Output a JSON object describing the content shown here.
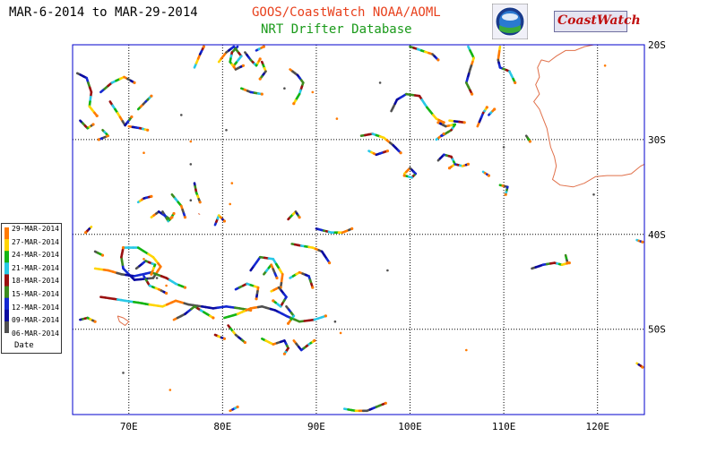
{
  "header": {
    "date_range": "MAR-6-2014 to MAR-29-2014",
    "producer": "GOOS/CoastWatch  NOAA/AOML",
    "subtitle": "NRT Drifter Database"
  },
  "logos": {
    "noaa": "noaa-logo",
    "coastwatch": "CoastWatch"
  },
  "map": {
    "lon_range": [
      64,
      125
    ],
    "lat_range": [
      -59,
      -20
    ],
    "lon_ticks": [
      {
        "value": 70,
        "label": "70E"
      },
      {
        "value": 80,
        "label": "80E"
      },
      {
        "value": 90,
        "label": "90E"
      },
      {
        "value": 100,
        "label": "100E"
      },
      {
        "value": 110,
        "label": "110E"
      },
      {
        "value": 120,
        "label": "120E"
      }
    ],
    "lat_ticks": [
      {
        "value": -20,
        "label": "20S"
      },
      {
        "value": -30,
        "label": "30S"
      },
      {
        "value": -40,
        "label": "40S"
      },
      {
        "value": -50,
        "label": "50S"
      }
    ],
    "grid": "dotted",
    "colors": {
      "frame": "#0000cc",
      "coast": "#e0704a",
      "grid": "#000000"
    }
  },
  "legend": {
    "title": "Date",
    "entries": [
      {
        "label": "29-MAR-2014",
        "color": "#ff7a00"
      },
      {
        "label": "27-MAR-2014",
        "color": "#ffd400"
      },
      {
        "label": "24-MAR-2014",
        "color": "#14b414"
      },
      {
        "label": "21-MAR-2014",
        "color": "#28c8e6"
      },
      {
        "label": "18-MAR-2014",
        "color": "#9a1010"
      },
      {
        "label": "15-MAR-2014",
        "color": "#3c8c1e"
      },
      {
        "label": "12-MAR-2014",
        "color": "#1428d2"
      },
      {
        "label": "09-MAR-2014",
        "color": "#0a0aa0"
      },
      {
        "label": "06-MAR-2014",
        "color": "#505050"
      }
    ]
  },
  "tracks": [
    [
      [
        64.5,
        -23.0
      ],
      [
        65.5,
        -23.5
      ],
      [
        66.0,
        -25.0
      ],
      [
        65.8,
        -26.5
      ],
      [
        66.6,
        -27.5
      ]
    ],
    [
      [
        67.0,
        -25.0
      ],
      [
        68.2,
        -24.0
      ],
      [
        69.5,
        -23.4
      ],
      [
        70.6,
        -24.0
      ]
    ],
    [
      [
        68.0,
        -26.0
      ],
      [
        68.8,
        -27.2
      ],
      [
        69.6,
        -28.5
      ],
      [
        70.3,
        -27.6
      ]
    ],
    [
      [
        71.0,
        -26.8
      ],
      [
        71.8,
        -26.0
      ],
      [
        72.4,
        -25.4
      ]
    ],
    [
      [
        70.0,
        -28.6
      ],
      [
        71.2,
        -28.8
      ],
      [
        72.0,
        -29.0
      ]
    ],
    [
      [
        64.8,
        -28.0
      ],
      [
        65.6,
        -28.8
      ],
      [
        66.2,
        -28.4
      ]
    ],
    [
      [
        67.2,
        -29.0
      ],
      [
        67.8,
        -29.6
      ],
      [
        66.8,
        -30.0
      ]
    ],
    [
      [
        77.0,
        -22.4
      ],
      [
        77.6,
        -21.0
      ],
      [
        78.0,
        -20.2
      ]
    ],
    [
      [
        79.6,
        -21.8
      ],
      [
        80.4,
        -20.8
      ],
      [
        81.2,
        -20.2
      ],
      [
        82.0,
        -21.2
      ],
      [
        81.2,
        -22.2
      ]
    ],
    [
      [
        82.4,
        -20.8
      ],
      [
        83.0,
        -21.6
      ],
      [
        83.6,
        -22.2
      ],
      [
        84.0,
        -21.5
      ]
    ],
    [
      [
        81.6,
        -20.2
      ],
      [
        81.0,
        -20.8
      ],
      [
        80.8,
        -21.8
      ],
      [
        81.4,
        -22.6
      ],
      [
        82.2,
        -22.2
      ]
    ],
    [
      [
        84.2,
        -21.8
      ],
      [
        84.6,
        -22.8
      ],
      [
        84.0,
        -23.6
      ]
    ],
    [
      [
        82.0,
        -24.6
      ],
      [
        83.0,
        -25.0
      ],
      [
        84.2,
        -25.2
      ]
    ],
    [
      [
        87.2,
        -22.6
      ],
      [
        88.0,
        -23.2
      ],
      [
        88.6,
        -24.0
      ],
      [
        88.2,
        -25.2
      ],
      [
        87.6,
        -26.2
      ]
    ],
    [
      [
        83.6,
        -20.6
      ],
      [
        84.4,
        -20.2
      ]
    ],
    [
      [
        100.0,
        -20.2
      ],
      [
        101.2,
        -20.6
      ],
      [
        102.4,
        -21.0
      ],
      [
        103.0,
        -21.6
      ]
    ],
    [
      [
        106.2,
        -20.2
      ],
      [
        106.8,
        -21.4
      ],
      [
        106.4,
        -22.6
      ],
      [
        106.0,
        -24.0
      ],
      [
        106.6,
        -25.2
      ]
    ],
    [
      [
        109.6,
        -20.2
      ],
      [
        109.4,
        -21.6
      ],
      [
        109.6,
        -22.4
      ],
      [
        110.6,
        -22.8
      ],
      [
        111.2,
        -24.0
      ]
    ],
    [
      [
        98.0,
        -27.0
      ],
      [
        98.6,
        -25.8
      ],
      [
        99.6,
        -25.2
      ],
      [
        101.0,
        -25.4
      ],
      [
        101.8,
        -26.6
      ],
      [
        102.8,
        -27.8
      ],
      [
        103.6,
        -28.2
      ]
    ],
    [
      [
        103.4,
        -29.6
      ],
      [
        104.4,
        -29.0
      ],
      [
        104.8,
        -28.4
      ],
      [
        103.8,
        -28.6
      ],
      [
        103.0,
        -28.2
      ]
    ],
    [
      [
        102.8,
        -30.0
      ],
      [
        103.6,
        -29.4
      ]
    ],
    [
      [
        104.2,
        -28.0
      ],
      [
        105.8,
        -28.2
      ]
    ],
    [
      [
        107.2,
        -28.6
      ],
      [
        107.8,
        -27.2
      ],
      [
        108.2,
        -26.6
      ]
    ],
    [
      [
        108.4,
        -27.4
      ],
      [
        109.0,
        -26.8
      ]
    ],
    [
      [
        94.8,
        -29.6
      ],
      [
        96.0,
        -29.4
      ],
      [
        97.2,
        -29.8
      ],
      [
        98.2,
        -30.6
      ],
      [
        99.0,
        -31.4
      ]
    ],
    [
      [
        95.6,
        -31.2
      ],
      [
        96.4,
        -31.6
      ],
      [
        97.6,
        -31.2
      ]
    ],
    [
      [
        99.4,
        -33.6
      ],
      [
        100.0,
        -33.0
      ],
      [
        100.6,
        -33.6
      ],
      [
        100.2,
        -34.0
      ],
      [
        99.4,
        -33.8
      ]
    ],
    [
      [
        103.0,
        -32.2
      ],
      [
        103.6,
        -31.6
      ],
      [
        104.4,
        -31.8
      ],
      [
        104.8,
        -32.6
      ],
      [
        104.2,
        -33.0
      ]
    ],
    [
      [
        104.8,
        -32.6
      ],
      [
        105.6,
        -32.8
      ],
      [
        106.2,
        -32.6
      ]
    ],
    [
      [
        107.8,
        -33.4
      ],
      [
        108.4,
        -33.8
      ]
    ],
    [
      [
        109.6,
        -34.8
      ],
      [
        110.4,
        -35.0
      ],
      [
        110.2,
        -35.8
      ]
    ],
    [
      [
        112.4,
        -29.6
      ],
      [
        112.8,
        -30.2
      ]
    ],
    [
      [
        77.0,
        -34.6
      ],
      [
        77.2,
        -35.6
      ],
      [
        77.6,
        -36.6
      ]
    ],
    [
      [
        74.6,
        -35.8
      ],
      [
        75.6,
        -37.0
      ],
      [
        76.0,
        -38.2
      ]
    ],
    [
      [
        71.0,
        -36.6
      ],
      [
        71.6,
        -36.2
      ],
      [
        72.4,
        -36.0
      ]
    ],
    [
      [
        72.4,
        -38.2
      ],
      [
        73.2,
        -37.6
      ],
      [
        74.4,
        -38.4
      ],
      [
        74.8,
        -37.8
      ]
    ],
    [
      [
        73.6,
        -37.6
      ],
      [
        74.2,
        -38.6
      ],
      [
        74.6,
        -38.2
      ]
    ],
    [
      [
        79.2,
        -39.0
      ],
      [
        79.6,
        -38.0
      ],
      [
        80.2,
        -38.6
      ]
    ],
    [
      [
        87.0,
        -38.4
      ],
      [
        87.8,
        -37.6
      ],
      [
        88.2,
        -38.2
      ]
    ],
    [
      [
        66.0,
        -39.2
      ],
      [
        65.4,
        -39.8
      ]
    ],
    [
      [
        66.4,
        -41.8
      ],
      [
        67.2,
        -42.2
      ]
    ],
    [
      [
        90.0,
        -39.4
      ],
      [
        90.8,
        -39.6
      ],
      [
        91.6,
        -39.8
      ],
      [
        92.8,
        -39.8
      ],
      [
        93.8,
        -39.4
      ]
    ],
    [
      [
        87.4,
        -41.0
      ],
      [
        88.4,
        -41.2
      ],
      [
        89.6,
        -41.4
      ],
      [
        90.6,
        -41.8
      ],
      [
        91.4,
        -43.0
      ]
    ],
    [
      [
        69.4,
        -41.4
      ],
      [
        71.0,
        -41.4
      ],
      [
        72.6,
        -42.4
      ],
      [
        73.4,
        -43.4
      ],
      [
        72.6,
        -44.6
      ],
      [
        70.6,
        -44.8
      ],
      [
        69.4,
        -43.6
      ],
      [
        69.2,
        -42.4
      ],
      [
        69.4,
        -41.4
      ]
    ],
    [
      [
        66.4,
        -43.6
      ],
      [
        67.8,
        -43.8
      ],
      [
        69.2,
        -44.2
      ],
      [
        70.6,
        -44.4
      ],
      [
        72.4,
        -44.0
      ],
      [
        74.0,
        -44.6
      ],
      [
        75.0,
        -45.2
      ],
      [
        76.0,
        -45.6
      ]
    ],
    [
      [
        70.8,
        -43.6
      ],
      [
        71.8,
        -42.8
      ],
      [
        72.8,
        -43.2
      ],
      [
        72.4,
        -44.2
      ]
    ],
    [
      [
        71.6,
        -44.4
      ],
      [
        72.2,
        -45.4
      ],
      [
        73.2,
        -45.8
      ],
      [
        74.0,
        -46.2
      ]
    ],
    [
      [
        67.0,
        -46.6
      ],
      [
        68.4,
        -46.8
      ],
      [
        69.6,
        -47.0
      ],
      [
        71.0,
        -47.2
      ],
      [
        72.2,
        -47.4
      ],
      [
        73.6,
        -47.6
      ],
      [
        75.0,
        -47.0
      ],
      [
        76.4,
        -47.4
      ],
      [
        77.8,
        -47.6
      ],
      [
        79.0,
        -47.8
      ],
      [
        80.4,
        -47.6
      ],
      [
        81.8,
        -47.8
      ],
      [
        83.0,
        -48.0
      ]
    ],
    [
      [
        80.2,
        -48.8
      ],
      [
        81.6,
        -48.4
      ],
      [
        83.0,
        -47.8
      ],
      [
        84.2,
        -47.6
      ],
      [
        85.6,
        -48.0
      ],
      [
        86.8,
        -48.6
      ],
      [
        88.2,
        -49.2
      ],
      [
        89.8,
        -49.0
      ],
      [
        91.0,
        -48.6
      ]
    ],
    [
      [
        74.8,
        -49.0
      ],
      [
        76.0,
        -48.4
      ],
      [
        77.0,
        -47.6
      ],
      [
        78.0,
        -48.2
      ],
      [
        79.0,
        -48.8
      ]
    ],
    [
      [
        83.0,
        -43.8
      ],
      [
        84.0,
        -42.4
      ],
      [
        85.4,
        -42.6
      ],
      [
        86.4,
        -44.2
      ],
      [
        86.2,
        -45.6
      ]
    ],
    [
      [
        84.4,
        -44.2
      ],
      [
        85.2,
        -43.2
      ],
      [
        85.8,
        -44.6
      ]
    ],
    [
      [
        87.2,
        -44.6
      ],
      [
        88.2,
        -44.0
      ],
      [
        89.2,
        -44.4
      ],
      [
        89.6,
        -45.6
      ]
    ],
    [
      [
        85.2,
        -46.0
      ],
      [
        86.0,
        -45.6
      ],
      [
        86.8,
        -46.6
      ],
      [
        86.2,
        -47.6
      ],
      [
        85.4,
        -47.0
      ]
    ],
    [
      [
        86.8,
        -47.6
      ],
      [
        87.6,
        -48.6
      ],
      [
        87.0,
        -49.4
      ]
    ],
    [
      [
        81.4,
        -45.8
      ],
      [
        82.6,
        -45.2
      ],
      [
        83.8,
        -45.6
      ],
      [
        83.6,
        -46.8
      ]
    ],
    [
      [
        80.6,
        -49.6
      ],
      [
        81.4,
        -50.6
      ],
      [
        82.4,
        -51.4
      ]
    ],
    [
      [
        84.2,
        -51.0
      ],
      [
        85.4,
        -51.6
      ],
      [
        86.6,
        -51.2
      ],
      [
        87.0,
        -52.0
      ],
      [
        86.6,
        -52.6
      ]
    ],
    [
      [
        87.6,
        -51.2
      ],
      [
        88.4,
        -52.2
      ],
      [
        89.2,
        -51.6
      ],
      [
        89.8,
        -51.2
      ]
    ],
    [
      [
        64.8,
        -49.0
      ],
      [
        65.6,
        -48.8
      ],
      [
        66.4,
        -49.2
      ]
    ],
    [
      [
        79.2,
        -50.6
      ],
      [
        80.2,
        -51.0
      ]
    ],
    [
      [
        93.0,
        -58.4
      ],
      [
        94.2,
        -58.6
      ],
      [
        95.4,
        -58.6
      ],
      [
        96.4,
        -58.2
      ],
      [
        97.4,
        -57.8
      ]
    ],
    [
      [
        80.8,
        -58.6
      ],
      [
        81.6,
        -58.2
      ]
    ],
    [
      [
        113.0,
        -43.6
      ],
      [
        114.2,
        -43.2
      ],
      [
        115.4,
        -43.0
      ],
      [
        116.2,
        -43.2
      ],
      [
        117.0,
        -43.0
      ]
    ],
    [
      [
        116.6,
        -42.2
      ],
      [
        116.8,
        -43.0
      ]
    ],
    [
      [
        124.2,
        -40.6
      ],
      [
        124.8,
        -40.8
      ]
    ],
    [
      [
        124.2,
        -53.6
      ],
      [
        124.8,
        -54.0
      ]
    ]
  ],
  "coastline": [
    [
      [
        114.0,
        -21.6
      ],
      [
        114.8,
        -21.8
      ],
      [
        115.6,
        -21.2
      ],
      [
        116.6,
        -20.6
      ],
      [
        117.6,
        -20.6
      ],
      [
        118.6,
        -20.2
      ],
      [
        119.6,
        -20.0
      ]
    ],
    [
      [
        114.0,
        -21.6
      ],
      [
        113.6,
        -22.4
      ],
      [
        113.8,
        -23.4
      ],
      [
        113.4,
        -24.2
      ],
      [
        113.8,
        -25.2
      ],
      [
        113.2,
        -26.0
      ],
      [
        113.8,
        -26.8
      ],
      [
        114.2,
        -27.8
      ],
      [
        114.6,
        -28.8
      ],
      [
        114.8,
        -29.8
      ],
      [
        115.0,
        -30.8
      ],
      [
        115.4,
        -31.8
      ],
      [
        115.6,
        -32.8
      ],
      [
        115.4,
        -33.6
      ],
      [
        115.2,
        -34.2
      ],
      [
        116.0,
        -34.8
      ],
      [
        117.4,
        -35.0
      ],
      [
        118.6,
        -34.6
      ],
      [
        119.8,
        -33.9
      ],
      [
        121.0,
        -33.8
      ],
      [
        122.6,
        -33.8
      ],
      [
        123.6,
        -33.6
      ],
      [
        124.6,
        -32.8
      ],
      [
        125.0,
        -32.6
      ]
    ],
    [
      [
        68.8,
        -48.6
      ],
      [
        69.4,
        -48.8
      ],
      [
        70.0,
        -49.2
      ],
      [
        69.6,
        -49.6
      ],
      [
        69.0,
        -49.2
      ],
      [
        68.8,
        -48.6
      ]
    ],
    [
      [
        77.4,
        -37.8
      ],
      [
        77.6,
        -37.9
      ]
    ]
  ],
  "dots": [
    [
      75.6,
      -27.4
    ],
    [
      76.6,
      -30.2
    ],
    [
      80.4,
      -29.0
    ],
    [
      71.6,
      -31.4
    ],
    [
      76.6,
      -32.6
    ],
    [
      81.0,
      -34.6
    ],
    [
      73.0,
      -44.6
    ],
    [
      74.0,
      -45.4
    ],
    [
      76.6,
      -36.4
    ],
    [
      80.8,
      -36.8
    ],
    [
      92.0,
      -49.2
    ],
    [
      92.6,
      -50.4
    ],
    [
      69.4,
      -54.6
    ],
    [
      74.4,
      -56.4
    ],
    [
      96.8,
      -24.0
    ],
    [
      92.2,
      -27.8
    ],
    [
      97.6,
      -43.8
    ],
    [
      120.8,
      -22.2
    ],
    [
      119.6,
      -35.8
    ],
    [
      106.0,
      -52.2
    ],
    [
      110.0,
      -30.8
    ],
    [
      89.6,
      -25.0
    ],
    [
      86.6,
      -24.6
    ],
    [
      71.6,
      -42.6
    ]
  ]
}
